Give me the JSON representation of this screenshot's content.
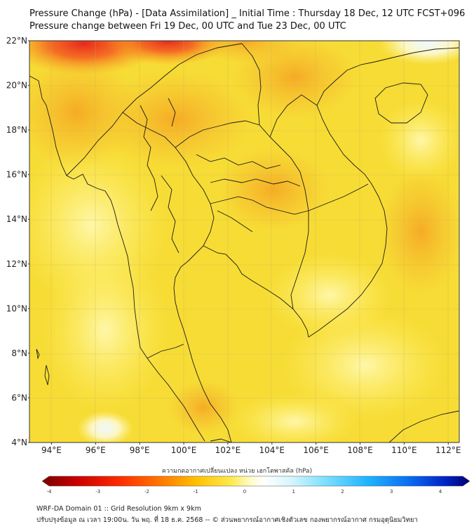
{
  "header": {
    "title_line1": "Pressure Change (hPa) - [Data Assimilation] _ Initial Time : Thursday 18 Dec, 12 UTC FCST+096",
    "title_line2": "Pressure change between Fri 19 Dec, 00 UTC and Tue 23 Dec, 00 UTC"
  },
  "map": {
    "lat_labels": [
      "22°N",
      "20°N",
      "18°N",
      "16°N",
      "14°N",
      "12°N",
      "10°N",
      "8°N",
      "6°N",
      "4°N"
    ],
    "lon_labels": [
      "94°E",
      "96°E",
      "98°E",
      "100°E",
      "102°E",
      "104°E",
      "106°E",
      "108°E",
      "110°E",
      "112°E"
    ],
    "extent": {
      "lon_min": 93,
      "lon_max": 112.5,
      "lat_min": 4,
      "lat_max": 22
    },
    "colors": {
      "background_field": "#f7dc35",
      "low_change": "#fff59a",
      "high_change": "#f5a623",
      "strong_negative": "#e8281e",
      "coast_line": "#1a1a1a"
    }
  },
  "colorbar": {
    "label": "ความกดอากาศเปลี่ยนแปลง หน่วย เฮกโตพาสคัล (hPa)",
    "ticks": [
      "-4",
      "-3",
      "-2",
      "-1",
      "0",
      "1",
      "2",
      "3",
      "4"
    ],
    "colors": [
      "#7a0000",
      "#c80000",
      "#ff2a00",
      "#ff7a00",
      "#ffc000",
      "#ffe94a",
      "#fffcd0",
      "#ffffff",
      "#d8f6ff",
      "#7fe0ff",
      "#1fb5ff",
      "#0a6cf0",
      "#0025c8",
      "#00006e"
    ]
  },
  "footer": {
    "line1": "WRF-DA Domain 01 :: Grid Resolution 9km x 9km",
    "line2": "ปรับปรุงข้อมูล ณ เวลา 19:00น. วัน พฤ. ที่ 18 ธ.ค. 2568 -- © ส่วนพยากรณ์อากาศเชิงตัวเลข กองพยากรณ์อากาศ กรมอุตุนิยมวิทยา"
  }
}
